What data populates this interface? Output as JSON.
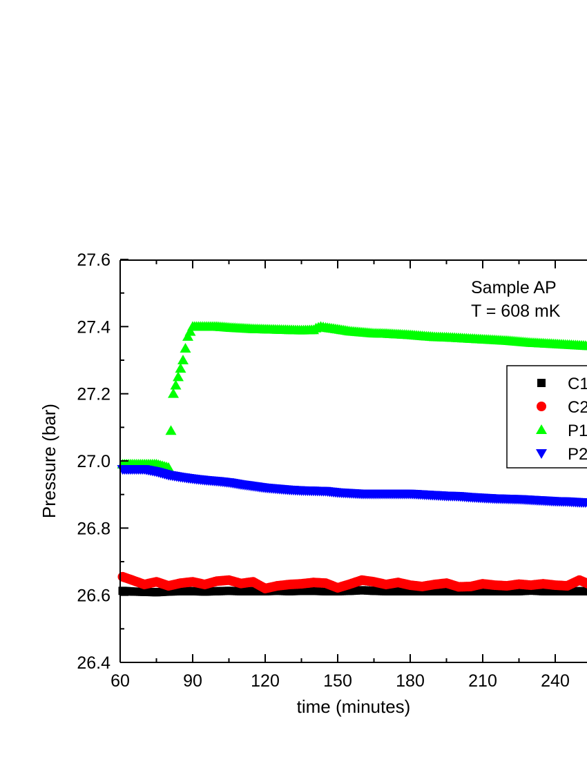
{
  "chart_data": {
    "type": "scatter",
    "title": "",
    "xlabel": "time (minutes)",
    "ylabel": "Pressure (bar)",
    "xlim": [
      60,
      255
    ],
    "ylim": [
      26.4,
      27.6
    ],
    "xticks": [
      "60",
      "90",
      "120",
      "150",
      "180",
      "210",
      "240"
    ],
    "yticks": [
      "26.4",
      "26.6",
      "26.8",
      "27.0",
      "27.2",
      "27.4",
      "27.6"
    ],
    "annotations": [
      "Sample AP",
      "T = 608 mK"
    ],
    "legend": {
      "placement": "right",
      "entries": [
        "C1",
        "C2",
        "P1",
        "P2"
      ]
    },
    "series": [
      {
        "name": "C1",
        "marker": "square",
        "color": "#000000",
        "x": [
          61,
          65,
          70,
          75,
          80,
          85,
          90,
          95,
          100,
          105,
          110,
          115,
          120,
          125,
          130,
          135,
          140,
          145,
          150,
          155,
          160,
          165,
          170,
          175,
          180,
          185,
          190,
          195,
          200,
          205,
          210,
          215,
          220,
          225,
          230,
          235,
          240,
          245,
          250,
          255
        ],
        "y": [
          26.613,
          26.611,
          26.61,
          26.609,
          26.611,
          26.612,
          26.612,
          26.611,
          26.612,
          26.613,
          26.612,
          26.612,
          26.612,
          26.613,
          26.612,
          26.613,
          26.613,
          26.612,
          26.612,
          26.613,
          26.615,
          26.613,
          26.612,
          26.612,
          26.612,
          26.612,
          26.612,
          26.612,
          26.612,
          26.612,
          26.612,
          26.612,
          26.612,
          26.612,
          26.614,
          26.612,
          26.612,
          26.612,
          26.612,
          26.612
        ]
      },
      {
        "name": "C2",
        "marker": "circle",
        "color": "#ff0000",
        "x": [
          61,
          65,
          70,
          75,
          80,
          85,
          90,
          95,
          100,
          105,
          110,
          115,
          120,
          125,
          130,
          135,
          140,
          145,
          150,
          155,
          160,
          165,
          170,
          175,
          180,
          185,
          190,
          195,
          200,
          205,
          210,
          215,
          220,
          225,
          230,
          235,
          240,
          245,
          250,
          255
        ],
        "y": [
          26.655,
          26.645,
          26.632,
          26.64,
          26.628,
          26.636,
          26.64,
          26.632,
          26.642,
          26.645,
          26.635,
          26.64,
          26.62,
          26.628,
          26.632,
          26.634,
          26.638,
          26.636,
          26.622,
          26.633,
          26.645,
          26.64,
          26.632,
          26.638,
          26.63,
          26.626,
          26.632,
          26.636,
          26.625,
          26.626,
          26.634,
          26.63,
          26.628,
          26.633,
          26.63,
          26.634,
          26.63,
          26.628,
          26.645,
          26.63
        ]
      },
      {
        "name": "P1",
        "marker": "triangle-up",
        "color": "#00ff00",
        "x": [
          61,
          65,
          70,
          75,
          80,
          82,
          84,
          86,
          88,
          90,
          95,
          100,
          105,
          110,
          115,
          120,
          125,
          130,
          135,
          140,
          141,
          143,
          145,
          150,
          155,
          160,
          165,
          170,
          175,
          180,
          185,
          190,
          195,
          200,
          205,
          210,
          215,
          220,
          225,
          230,
          235,
          240,
          245,
          250,
          255
        ],
        "y": [
          26.99,
          26.99,
          26.99,
          26.99,
          26.98,
          27.2,
          27.25,
          27.3,
          27.37,
          27.4,
          27.4,
          27.4,
          27.397,
          27.395,
          27.393,
          27.392,
          27.391,
          27.39,
          27.389,
          27.39,
          27.395,
          27.4,
          27.397,
          27.392,
          27.386,
          27.383,
          27.38,
          27.379,
          27.377,
          27.375,
          27.372,
          27.369,
          27.368,
          27.366,
          27.364,
          27.362,
          27.36,
          27.358,
          27.355,
          27.352,
          27.35,
          27.348,
          27.346,
          27.344,
          27.342
        ]
      },
      {
        "name": "P2",
        "marker": "triangle-down",
        "color": "#0000ff",
        "x": [
          61,
          65,
          70,
          75,
          80,
          85,
          90,
          95,
          100,
          105,
          110,
          115,
          120,
          125,
          130,
          135,
          140,
          145,
          150,
          155,
          160,
          165,
          170,
          175,
          180,
          185,
          190,
          195,
          200,
          205,
          210,
          215,
          220,
          225,
          230,
          235,
          240,
          245,
          250,
          255
        ],
        "y": [
          26.975,
          26.975,
          26.975,
          26.968,
          26.958,
          26.952,
          26.947,
          26.943,
          26.94,
          26.936,
          26.93,
          26.925,
          26.92,
          26.917,
          26.914,
          26.912,
          26.911,
          26.91,
          26.906,
          26.904,
          26.902,
          26.902,
          26.902,
          26.902,
          26.902,
          26.9,
          26.898,
          26.896,
          26.895,
          26.892,
          26.89,
          26.888,
          26.887,
          26.886,
          26.884,
          26.882,
          26.88,
          26.879,
          26.877,
          26.876
        ]
      }
    ]
  }
}
